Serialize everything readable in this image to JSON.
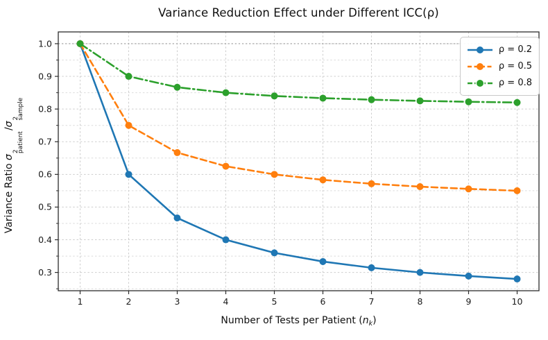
{
  "title": "Variance Reduction Effect under Different ICC(ρ)",
  "axes": {
    "x": {
      "label_parts": {
        "prefix": "Number of Tests per Patient (",
        "var": "n",
        "sub": "k",
        "suffix": ")"
      }
    },
    "y": {
      "label_parts": {
        "prefix": "Variance Ratio ",
        "sigma1": "σ",
        "sup1": "2",
        "sub1": "patient",
        "slash": "/",
        "sigma2": "σ",
        "sup2": "2",
        "sub2": "sample"
      }
    }
  },
  "chart_data": {
    "type": "line",
    "title": "Variance Reduction Effect under Different ICC(ρ)",
    "xlabel": "Number of Tests per Patient (n_k)",
    "ylabel": "Variance Ratio σ²_patient/σ²_sample",
    "x": [
      1,
      2,
      3,
      4,
      5,
      6,
      7,
      8,
      9,
      10
    ],
    "series": [
      {
        "name": "ρ = 0.2",
        "color": "#1f77b4",
        "linestyle": "solid",
        "marker": "circle",
        "values": [
          1.0,
          0.6,
          0.4667,
          0.4,
          0.36,
          0.3333,
          0.3143,
          0.3,
          0.2889,
          0.28
        ]
      },
      {
        "name": "ρ = 0.5",
        "color": "#ff7f0e",
        "linestyle": "dashed",
        "marker": "circle",
        "values": [
          1.0,
          0.75,
          0.6667,
          0.625,
          0.6,
          0.5833,
          0.5714,
          0.5625,
          0.5556,
          0.55
        ]
      },
      {
        "name": "ρ = 0.8",
        "color": "#2ca02c",
        "linestyle": "dashdot",
        "marker": "circle",
        "values": [
          1.0,
          0.9,
          0.8667,
          0.85,
          0.84,
          0.8333,
          0.8286,
          0.825,
          0.8222,
          0.82
        ]
      }
    ],
    "xlim": [
      0.55,
      10.45
    ],
    "ylim": [
      0.244,
      1.036
    ],
    "xticks": [
      1,
      2,
      3,
      4,
      5,
      6,
      7,
      8,
      9,
      10
    ],
    "xtick_labels": [
      "1",
      "2",
      "3",
      "4",
      "5",
      "6",
      "7",
      "8",
      "9",
      "10"
    ],
    "yticks": [
      0.3,
      0.4,
      0.5,
      0.6,
      0.7,
      0.8,
      0.9,
      1.0
    ],
    "ytick_labels": [
      "0.3",
      "0.4",
      "0.5",
      "0.6",
      "0.7",
      "0.8",
      "0.9",
      "1.0"
    ],
    "y_minor_step": 0.05,
    "grid": true,
    "legend_position": "upper right",
    "reference_line": {
      "y": 1.0,
      "color": "#9e9e9e",
      "linestyle": "dotted"
    }
  }
}
